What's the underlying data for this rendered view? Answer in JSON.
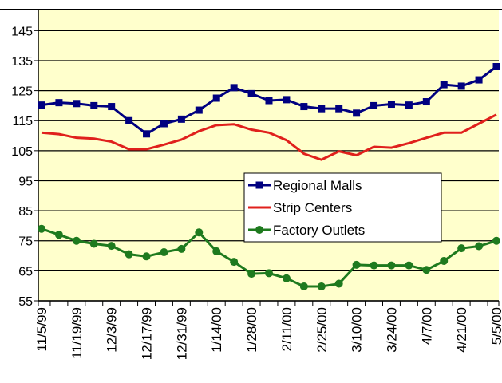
{
  "chart_data": {
    "type": "line",
    "categories": [
      "11/5/99",
      null,
      "11/19/99",
      null,
      "12/3/99",
      null,
      "12/17/99",
      null,
      "12/31/99",
      null,
      "1/14/00",
      null,
      "1/28/00",
      null,
      "2/11/00",
      null,
      "2/25/00",
      null,
      "3/10/00",
      null,
      "3/24/00",
      null,
      "4/7/00",
      null,
      "4/21/00",
      null,
      "5/5/00"
    ],
    "series": [
      {
        "name": "Regional Malls",
        "color": "#000080",
        "marker": "square",
        "values": [
          120.2,
          121,
          120.7,
          120,
          119.7,
          115,
          110.6,
          114,
          115.5,
          118.5,
          122.5,
          126,
          124,
          121.7,
          122,
          119.7,
          119,
          119,
          117.5,
          120,
          120.5,
          120.2,
          121.3,
          127,
          126.5,
          128.6,
          133
        ]
      },
      {
        "name": "Strip Centers",
        "color": "#e0201c",
        "marker": "none",
        "values": [
          111,
          110.5,
          109.3,
          109,
          108,
          105.5,
          105.5,
          107,
          108.7,
          111.5,
          113.5,
          113.8,
          112,
          111,
          108.5,
          104,
          102,
          104.8,
          103.5,
          106.3,
          106,
          107.5,
          109.3,
          111,
          111,
          114,
          117
        ]
      },
      {
        "name": "Factory Outlets",
        "color": "#1e7a1e",
        "marker": "circle",
        "values": [
          79,
          77,
          75,
          74,
          73.3,
          70.5,
          69.8,
          71.2,
          72.3,
          77.8,
          71.5,
          68,
          64,
          64.2,
          62.5,
          59.8,
          59.8,
          60.7,
          67,
          66.8,
          66.8,
          66.8,
          65.3,
          68.3,
          72.5,
          73.2,
          75
        ]
      }
    ],
    "ylim": [
      55,
      152
    ],
    "yticks": [
      55,
      65,
      75,
      85,
      95,
      105,
      115,
      125,
      135,
      145
    ],
    "grid": true,
    "background": "#ffffcc"
  }
}
